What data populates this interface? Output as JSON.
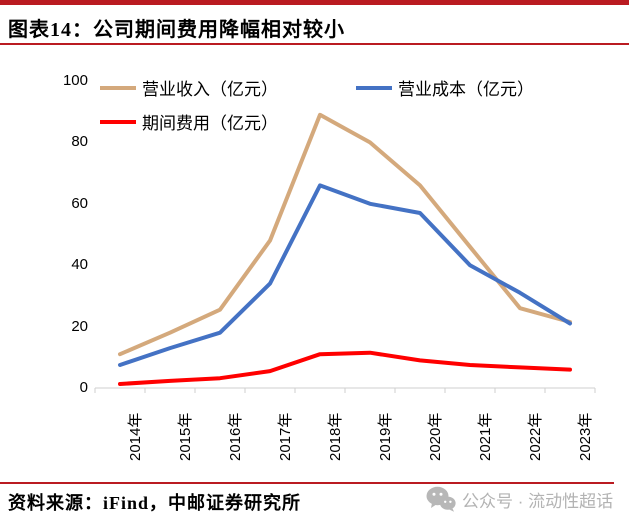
{
  "header": {
    "title": "图表14：公司期间费用降幅相对较小"
  },
  "chart_data": {
    "type": "line",
    "title": "",
    "xlabel": "",
    "ylabel": "",
    "x": [
      "2014年",
      "2015年",
      "2016年",
      "2017年",
      "2018年",
      "2019年",
      "2020年",
      "2021年",
      "2022年",
      "2023年"
    ],
    "series": [
      {
        "key": "revenue",
        "name": "营业收入（亿元）",
        "color": "#D4A97C",
        "values": [
          11,
          18,
          25.5,
          48,
          89,
          80,
          66,
          46,
          26,
          21.5
        ]
      },
      {
        "key": "cost",
        "name": "营业成本（亿元）",
        "color": "#4472C4",
        "values": [
          7.5,
          13,
          18,
          34,
          66,
          60,
          57,
          40,
          31,
          21
        ]
      },
      {
        "key": "expense",
        "name": "期间费用（亿元）",
        "color": "#FF0000",
        "values": [
          1.3,
          2.3,
          3.2,
          5.5,
          11,
          11.5,
          9,
          7.5,
          6.7,
          6
        ]
      }
    ],
    "ylim": [
      0,
      100
    ],
    "yticks": [
      0,
      20,
      40,
      60,
      80,
      100
    ],
    "grid": false,
    "legend_position": "top"
  },
  "footer": {
    "source": "资料来源：iFind，中邮证券研究所",
    "watermark": "公众号 · 流动性超话"
  },
  "colors": {
    "accent_red": "#BA1B21",
    "axis_gray": "#CFCFCF",
    "watermark_gray": "#B3B3B3"
  }
}
